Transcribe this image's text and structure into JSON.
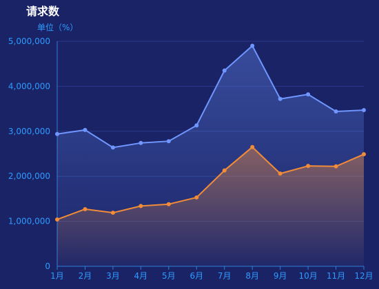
{
  "chart_data": {
    "type": "area",
    "title": "请求数",
    "unit_label": "单位（%）",
    "categories": [
      "1月",
      "2月",
      "3月",
      "4月",
      "5月",
      "6月",
      "7月",
      "8月",
      "9月",
      "10月",
      "11月",
      "12月"
    ],
    "y_ticks": [
      "0",
      "1,000,000",
      "2,000,000",
      "3,000,000",
      "4,000,000",
      "5,000,000"
    ],
    "ylim": [
      0,
      5000000
    ],
    "grid": true,
    "series": [
      {
        "color": "#6f97ff",
        "values": [
          2940000,
          3030000,
          2640000,
          2740000,
          2780000,
          3130000,
          4350000,
          4900000,
          3720000,
          3820000,
          3440000,
          3470000
        ]
      },
      {
        "color": "#f28c38",
        "values": [
          1040000,
          1270000,
          1190000,
          1340000,
          1380000,
          1530000,
          2130000,
          2650000,
          2060000,
          2230000,
          2220000,
          2490000
        ]
      }
    ]
  }
}
